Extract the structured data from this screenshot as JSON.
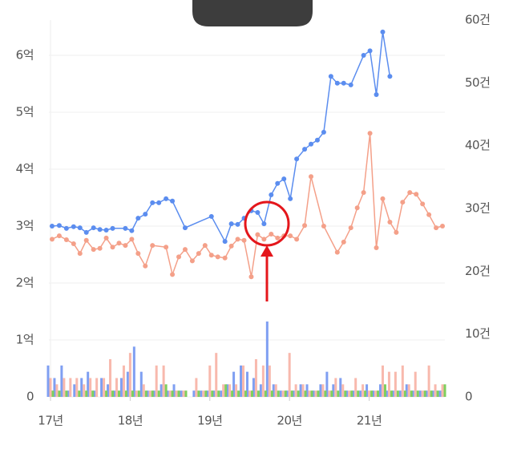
{
  "chart_data": {
    "type": "line",
    "xlim": [
      16.98,
      21.95
    ],
    "xticks": [
      {
        "value": 17,
        "label": "17년"
      },
      {
        "value": 18,
        "label": "18년"
      },
      {
        "value": 19,
        "label": "19년"
      },
      {
        "value": 20,
        "label": "20년"
      },
      {
        "value": 21,
        "label": "21년"
      }
    ],
    "ylim": [
      0,
      6.62
    ],
    "yticks": [
      0,
      {
        "value": 1,
        "label": "1억"
      },
      {
        "value": 2,
        "label": "2억"
      },
      {
        "value": 3,
        "label": "3억"
      },
      {
        "value": 4,
        "label": "4억"
      },
      {
        "value": 5,
        "label": "5억"
      },
      {
        "value": 6,
        "label": "6억"
      }
    ],
    "y2lim": [
      0,
      60
    ],
    "y2ticks": [
      0,
      {
        "value": 10,
        "label": "10건"
      },
      {
        "value": 20,
        "label": "20건"
      },
      {
        "value": 30,
        "label": "30건"
      },
      {
        "value": 40,
        "label": "40건"
      },
      {
        "value": 50,
        "label": "50건"
      },
      {
        "value": 60,
        "label": "60건"
      }
    ],
    "grid": true,
    "x": [
      17,
      17.08,
      17.17,
      17.25,
      17.33,
      17.42,
      17.5,
      17.58,
      17.67,
      17.75,
      17.83,
      17.92,
      18,
      18.08,
      18.17,
      18.25,
      18.33,
      18.42,
      18.5,
      18.58,
      18.67,
      18.75,
      18.83,
      18.92,
      19,
      19.08,
      19.17,
      19.25,
      19.33,
      19.42,
      19.5,
      19.58,
      19.67,
      19.75,
      19.83,
      19.92,
      20,
      20.08,
      20.17,
      20.25,
      20.33,
      20.42,
      20.5,
      20.58,
      20.67,
      20.75,
      20.83,
      20.92,
      21,
      21.08,
      21.17,
      21.25,
      21.33,
      21.42,
      21.5,
      21.58,
      21.67,
      21.75,
      21.83,
      21.92
    ],
    "series": [
      {
        "type": "bar",
        "axis": "y2",
        "color": "#7f9ff2",
        "values": [
          5,
          3,
          5,
          1,
          2,
          3,
          4,
          1,
          3,
          2,
          1,
          3,
          4,
          8,
          4,
          1,
          1,
          2,
          1,
          2,
          1,
          0,
          1,
          1,
          1,
          1,
          1,
          2,
          4,
          5,
          4,
          3,
          2,
          12,
          2,
          1,
          1,
          1,
          2,
          2,
          1,
          2,
          4,
          2,
          3,
          1,
          1,
          1,
          2,
          1,
          2,
          1,
          1,
          1,
          2,
          1,
          1,
          1,
          1,
          1
        ]
      },
      {
        "type": "bar",
        "axis": "y2",
        "color": "#f8b9ad",
        "values": [
          3,
          2,
          3,
          3,
          3,
          2,
          3,
          3,
          3,
          6,
          3,
          5,
          7,
          1,
          2,
          1,
          5,
          5,
          1,
          1,
          1,
          0,
          3,
          1,
          5,
          7,
          2,
          2,
          2,
          5,
          1,
          6,
          5,
          5,
          2,
          1,
          7,
          2,
          2,
          1,
          1,
          2,
          1,
          3,
          2,
          1,
          3,
          2,
          1,
          1,
          5,
          4,
          4,
          5,
          2,
          4,
          1,
          5,
          2,
          2
        ]
      },
      {
        "type": "bar",
        "axis": "y2",
        "color": "#7fcf5e",
        "values": [
          1,
          1,
          1,
          0,
          1,
          1,
          1,
          0,
          1,
          1,
          1,
          1,
          1,
          1,
          1,
          1,
          1,
          2,
          1,
          1,
          1,
          0,
          1,
          1,
          1,
          1,
          2,
          1,
          1,
          1,
          1,
          1,
          1,
          1,
          1,
          1,
          1,
          1,
          1,
          1,
          1,
          1,
          1,
          1,
          1,
          1,
          1,
          1,
          1,
          1,
          2,
          1,
          1,
          1,
          1,
          1,
          1,
          1,
          1,
          2
        ]
      },
      {
        "type": "line",
        "color": "#f4a089",
        "x": [
          17.02,
          17.11,
          17.2,
          17.29,
          17.37,
          17.45,
          17.54,
          17.62,
          17.7,
          17.78,
          17.86,
          17.94,
          18.02,
          18.1,
          18.19,
          18.28,
          18.45,
          18.53,
          18.61,
          18.69,
          18.78,
          18.86,
          18.94,
          19.02,
          19.1,
          19.19,
          19.27,
          19.35,
          19.43,
          19.52,
          19.6,
          19.68,
          19.77,
          19.85,
          19.93,
          20.01,
          20.09,
          20.19,
          20.27,
          20.43,
          20.6,
          20.68,
          20.77,
          20.85,
          20.93,
          21.01,
          21.09,
          21.17,
          21.26,
          21.34,
          21.42,
          21.51,
          21.59,
          21.67,
          21.75,
          21.84,
          21.92
        ],
        "values": [
          2.77,
          2.83,
          2.76,
          2.69,
          2.52,
          2.75,
          2.59,
          2.61,
          2.79,
          2.63,
          2.7,
          2.66,
          2.77,
          2.52,
          2.3,
          2.66,
          2.63,
          2.15,
          2.46,
          2.59,
          2.39,
          2.52,
          2.66,
          2.49,
          2.46,
          2.44,
          2.65,
          2.77,
          2.75,
          2.11,
          2.85,
          2.77,
          2.86,
          2.79,
          2.83,
          2.83,
          2.77,
          3.01,
          3.87,
          3.0,
          2.54,
          2.72,
          2.97,
          3.32,
          3.59,
          4.63,
          2.62,
          3.48,
          3.07,
          2.89,
          3.42,
          3.59,
          3.56,
          3.39,
          3.2,
          2.97,
          3.0
        ]
      },
      {
        "type": "line",
        "color": "#5b8def",
        "x": [
          17.02,
          17.11,
          17.2,
          17.29,
          17.37,
          17.45,
          17.54,
          17.62,
          17.7,
          17.78,
          17.94,
          18.02,
          18.1,
          18.19,
          18.28,
          18.36,
          18.45,
          18.53,
          18.69,
          19.02,
          19.19,
          19.27,
          19.35,
          19.43,
          19.52,
          19.6,
          19.68,
          19.77,
          19.85,
          19.93,
          20.01,
          20.09,
          20.19,
          20.27,
          20.35,
          20.43,
          20.52,
          20.6,
          20.68,
          20.77,
          20.93,
          21.01,
          21.09,
          21.17,
          21.26
        ],
        "values": [
          3.0,
          3.01,
          2.96,
          2.99,
          2.97,
          2.89,
          2.97,
          2.94,
          2.93,
          2.96,
          2.96,
          2.92,
          3.14,
          3.21,
          3.41,
          3.41,
          3.48,
          3.44,
          2.97,
          3.17,
          2.73,
          3.04,
          3.03,
          3.14,
          3.27,
          3.24,
          3.04,
          3.55,
          3.75,
          3.83,
          3.48,
          4.18,
          4.35,
          4.44,
          4.51,
          4.65,
          5.63,
          5.51,
          5.51,
          5.48,
          6.0,
          6.08,
          5.31,
          6.41,
          5.63
        ]
      }
    ]
  }
}
